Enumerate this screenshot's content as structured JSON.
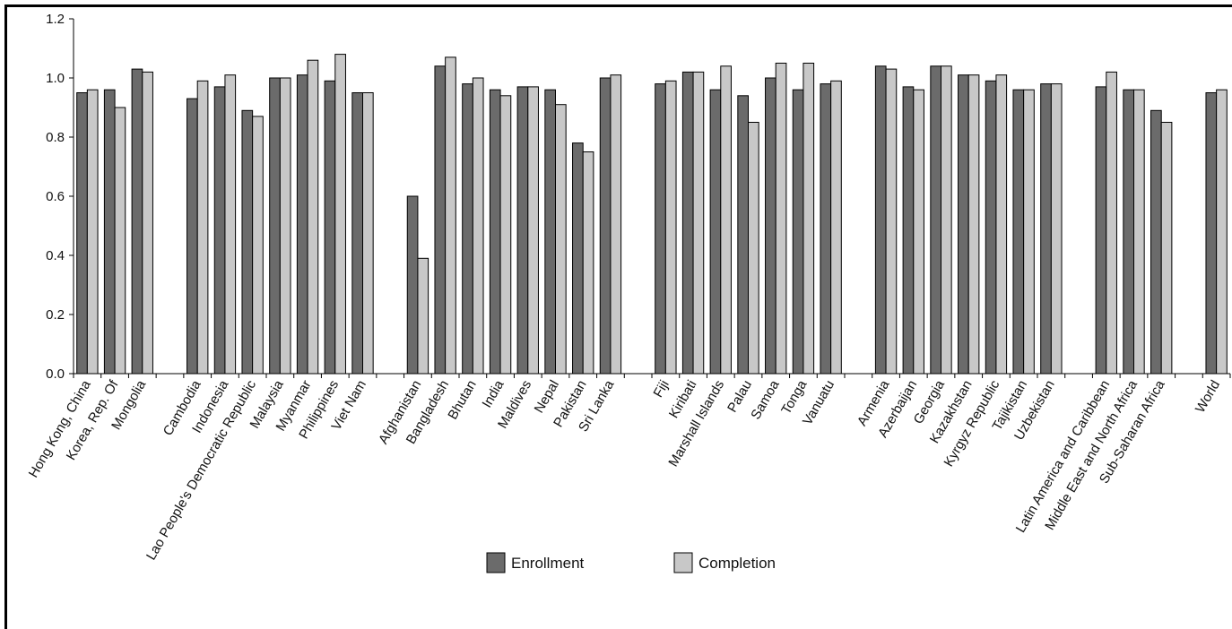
{
  "chart_data": {
    "type": "bar",
    "ylim": [
      0,
      1.2
    ],
    "yticks": [
      "0.0",
      "0.2",
      "0.4",
      "0.6",
      "0.8",
      "1.0",
      "1.2"
    ],
    "grid": false,
    "legend_position": "bottom-center",
    "categories": [
      "Hong Kong, China",
      "Korea, Rep. Of",
      "Mongolia",
      "Cambodia",
      "Indonesia",
      "Lao People's Democratic Republic",
      "Malaysia",
      "Myanmar",
      "Philippines",
      "Viet Nam",
      "Afghanistan",
      "Bangladesh",
      "Bhutan",
      "India",
      "Maldives",
      "Nepal",
      "Pakistan",
      "Sri Lanka",
      "Fiji",
      "Kiribati",
      "Marshall Islands",
      "Palau",
      "Samoa",
      "Tonga",
      "Vanuatu",
      "Armenia",
      "Azerbaijan",
      "Georgia",
      "Kazakhstan",
      "Kyrgyz Republic",
      "Tajikistan",
      "Uzbekistan",
      "Latin America and Caribbean",
      "Middle East and North Africa",
      "Sub-Saharan Africa",
      "World"
    ],
    "groups": [
      3,
      7,
      8,
      7,
      7,
      3,
      1
    ],
    "series": [
      {
        "name": "Enrollment",
        "color": "#6b6b6b",
        "values": [
          0.95,
          0.96,
          1.03,
          0.93,
          0.97,
          0.89,
          1.0,
          1.01,
          0.99,
          0.95,
          0.6,
          1.04,
          0.98,
          0.96,
          0.97,
          0.96,
          0.78,
          1.0,
          0.98,
          1.02,
          0.96,
          0.94,
          1.0,
          0.96,
          0.98,
          1.04,
          0.97,
          1.04,
          1.01,
          0.99,
          0.96,
          0.98,
          0.97,
          0.96,
          0.89,
          0.95
        ]
      },
      {
        "name": "Completion",
        "color": "#c8c8c8",
        "values": [
          0.96,
          0.9,
          1.02,
          0.99,
          1.01,
          0.87,
          1.0,
          1.06,
          1.08,
          0.95,
          0.39,
          1.07,
          1.0,
          0.94,
          0.97,
          0.91,
          0.75,
          1.01,
          0.99,
          1.02,
          1.04,
          0.85,
          1.05,
          1.05,
          0.99,
          1.03,
          0.96,
          1.04,
          1.01,
          1.01,
          0.96,
          0.98,
          1.02,
          0.96,
          0.85,
          0.96
        ]
      }
    ]
  }
}
